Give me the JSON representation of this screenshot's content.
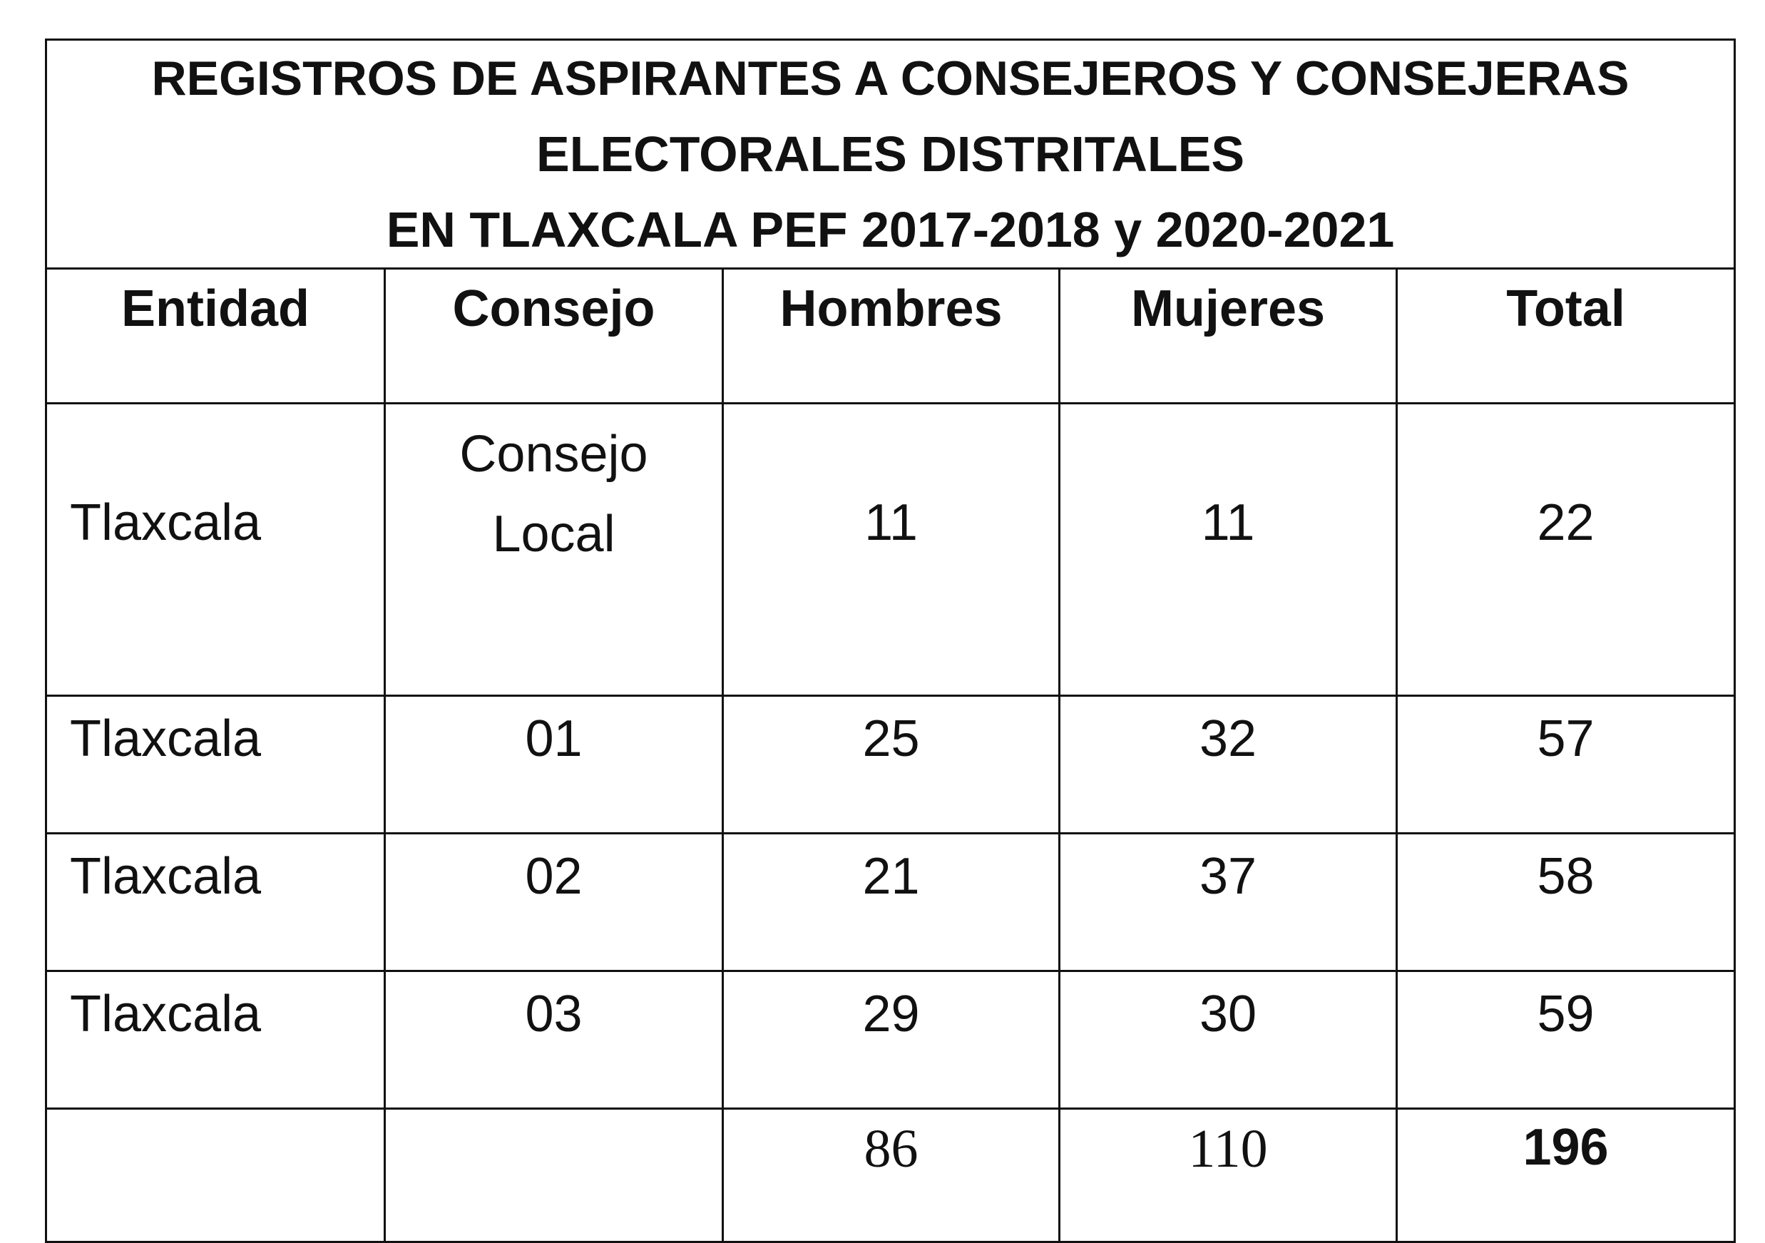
{
  "title": {
    "line1": "REGISTROS DE ASPIRANTES A CONSEJEROS Y CONSEJERAS",
    "line2": "ELECTORALES DISTRITALES",
    "line3": "EN TLAXCALA PEF 2017-2018 y 2020-2021"
  },
  "headers": {
    "entidad": "Entidad",
    "consejo": "Consejo",
    "hombres": "Hombres",
    "mujeres": "Mujeres",
    "total": "Total"
  },
  "rows": [
    {
      "entidad": "Tlaxcala",
      "consejo_line1": "Consejo",
      "consejo_line2": "Local",
      "hombres": "11",
      "mujeres": "11",
      "total": "22"
    },
    {
      "entidad": "Tlaxcala",
      "consejo": "01",
      "hombres": "25",
      "mujeres": "32",
      "total": "57"
    },
    {
      "entidad": "Tlaxcala",
      "consejo": "02",
      "hombres": "21",
      "mujeres": "37",
      "total": "58"
    },
    {
      "entidad": "Tlaxcala",
      "consejo": "03",
      "hombres": "29",
      "mujeres": "30",
      "total": "59"
    }
  ],
  "totals": {
    "hombres": "86",
    "mujeres": "110",
    "total": "196"
  }
}
